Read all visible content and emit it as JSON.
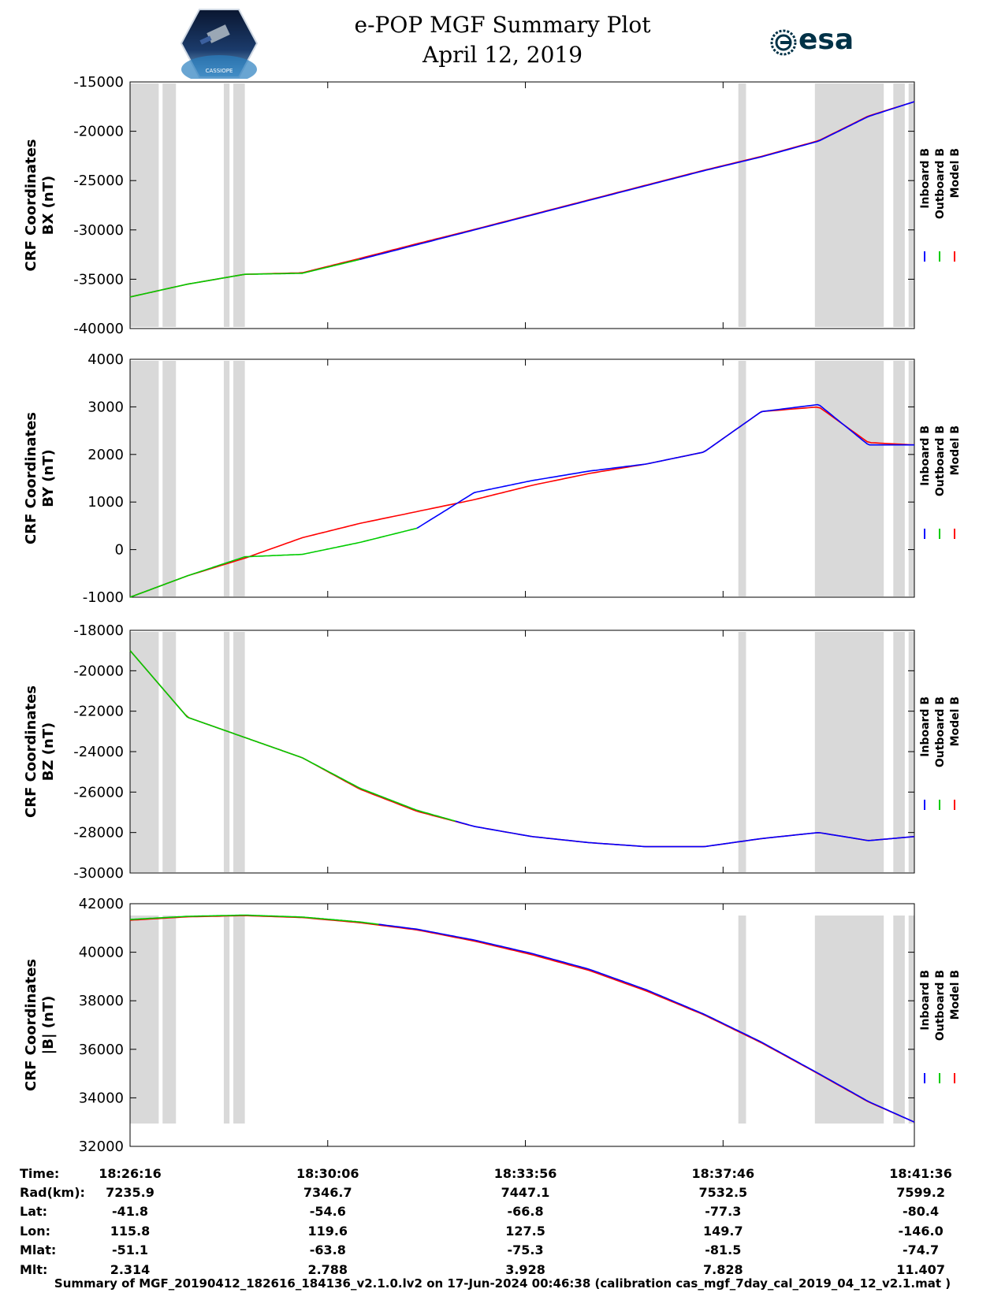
{
  "title_line1": "e-POP MGF Summary Plot",
  "title_line2": "April 12, 2019",
  "logo_left_text": "CASSIOPE",
  "logo_right_text": "esa",
  "legend": [
    {
      "label": "Inboard B",
      "color": "#0000ff"
    },
    {
      "label": "Outboard B",
      "color": "#00cc00"
    },
    {
      "label": "Model B",
      "color": "#ff0000"
    }
  ],
  "chart_data": [
    {
      "type": "line",
      "ylabel_line1": "CRF Coordinates",
      "ylabel_line2": "BX (nT)",
      "ylim": [
        -40000,
        -15000
      ],
      "yticks": [
        -15000,
        -20000,
        -25000,
        -30000,
        -35000,
        -40000
      ],
      "ytick_labels": [
        "-15000",
        "-20000",
        "-25000",
        "-30000",
        "-35000",
        "-40000"
      ],
      "x_minutes": [
        0,
        1.5,
        3,
        4.5,
        6,
        7.5,
        9,
        10.5,
        12,
        13.5,
        15,
        16.5,
        18,
        19.3,
        20.5
      ],
      "series": [
        {
          "name": "Outboard B",
          "segment": [
            0,
            6
          ],
          "values": [
            -36800,
            -35500,
            -34500,
            -34400,
            -33000,
            -31500,
            -30000,
            -28500,
            -27000,
            -25500,
            -24000,
            -22600,
            -21000,
            -18500,
            -17000
          ]
        },
        {
          "name": "Inboard B",
          "segment": [
            6,
            20.5
          ],
          "values": [
            -36800,
            -35500,
            -34500,
            -34400,
            -33000,
            -31500,
            -30000,
            -28500,
            -27000,
            -25500,
            -24000,
            -22600,
            -21000,
            -18500,
            -17000
          ]
        },
        {
          "name": "Model B",
          "segment": [
            0,
            20.5
          ],
          "values": [
            -36800,
            -35500,
            -34500,
            -34350,
            -32900,
            -31400,
            -29950,
            -28450,
            -26950,
            -25450,
            -23950,
            -22550,
            -20950,
            -18450,
            -17000
          ]
        }
      ]
    },
    {
      "type": "line",
      "ylabel_line1": "CRF Coordinates",
      "ylabel_line2": "BY (nT)",
      "ylim": [
        -1000,
        4000
      ],
      "yticks": [
        4000,
        3000,
        2000,
        1000,
        0,
        -1000
      ],
      "ytick_labels": [
        "4000",
        "3000",
        "2000",
        "1000",
        "0",
        "-1000"
      ],
      "x_minutes": [
        0,
        1.5,
        3,
        4.5,
        6,
        7.5,
        9,
        10.5,
        12,
        13.5,
        15,
        16.5,
        18,
        19.3,
        20.5
      ],
      "series": [
        {
          "name": "Outboard B",
          "segment": [
            0,
            7.5
          ],
          "values": [
            -1000,
            -550,
            -150,
            -100,
            150,
            450,
            1200,
            1450,
            1650,
            1800,
            2050,
            2900,
            3050,
            2200,
            2200
          ]
        },
        {
          "name": "Inboard B",
          "segment": [
            7.5,
            20.5
          ],
          "values": [
            -1000,
            -550,
            -150,
            -100,
            150,
            450,
            1200,
            1450,
            1650,
            1800,
            2050,
            2900,
            3050,
            2200,
            2200
          ]
        },
        {
          "name": "Model B",
          "segment": [
            0,
            20.5
          ],
          "values": [
            -1000,
            -550,
            -180,
            250,
            550,
            800,
            1050,
            1350,
            1600,
            1800,
            2050,
            2900,
            3000,
            2250,
            2200
          ]
        }
      ]
    },
    {
      "type": "line",
      "ylabel_line1": "CRF Coordinates",
      "ylabel_line2": "BZ (nT)",
      "ylim": [
        -30000,
        -18000
      ],
      "yticks": [
        -18000,
        -20000,
        -22000,
        -24000,
        -26000,
        -28000,
        -30000
      ],
      "ytick_labels": [
        "-18000",
        "-20000",
        "-22000",
        "-24000",
        "-26000",
        "-28000",
        "-30000"
      ],
      "x_minutes": [
        0,
        1.5,
        3,
        4.5,
        6,
        7.5,
        9,
        10.5,
        12,
        13.5,
        15,
        16.5,
        18,
        19.3,
        20.5
      ],
      "series": [
        {
          "name": "Outboard B",
          "segment": [
            0,
            8.5
          ],
          "values": [
            -19000,
            -22300,
            -23300,
            -24300,
            -25800,
            -26900,
            -27700,
            -28200,
            -28500,
            -28700,
            -28700,
            -28300,
            -28000,
            -28400,
            -28200
          ]
        },
        {
          "name": "Inboard B",
          "segment": [
            8.5,
            20.5
          ],
          "values": [
            -19000,
            -22300,
            -23300,
            -24300,
            -25800,
            -26900,
            -27700,
            -28200,
            -28500,
            -28700,
            -28700,
            -28300,
            -28000,
            -28400,
            -28200
          ]
        },
        {
          "name": "Model B",
          "segment": [
            0,
            20.5
          ],
          "values": [
            -19000,
            -22300,
            -23300,
            -24300,
            -25850,
            -26950,
            -27700,
            -28200,
            -28500,
            -28700,
            -28700,
            -28300,
            -28000,
            -28400,
            -28200
          ]
        }
      ]
    },
    {
      "type": "line",
      "ylabel_line1": "CRF Coordinates",
      "ylabel_line2": "|B| (nT)",
      "ylim": [
        32000,
        42000
      ],
      "yticks": [
        42000,
        40000,
        38000,
        36000,
        34000,
        32000
      ],
      "ytick_labels": [
        "42000",
        "40000",
        "38000",
        "36000",
        "34000",
        "32000"
      ],
      "x_minutes": [
        0,
        1.5,
        3,
        4.5,
        6,
        7.5,
        9,
        10.5,
        12,
        13.5,
        15,
        16.5,
        18,
        19.3,
        20.5
      ],
      "series": [
        {
          "name": "Outboard B",
          "segment": [
            0,
            6.5
          ],
          "values": [
            41350,
            41480,
            41530,
            41450,
            41250,
            40950,
            40500,
            39950,
            39300,
            38450,
            37450,
            36300,
            35000,
            33850,
            33000
          ]
        },
        {
          "name": "Inboard B",
          "segment": [
            6.5,
            20.5
          ],
          "values": [
            41350,
            41480,
            41530,
            41450,
            41250,
            40950,
            40500,
            39950,
            39300,
            38450,
            37450,
            36300,
            35000,
            33850,
            33000
          ]
        },
        {
          "name": "Model B",
          "segment": [
            0,
            20.5
          ],
          "values": [
            41320,
            41460,
            41510,
            41430,
            41220,
            40920,
            40460,
            39900,
            39250,
            38400,
            37420,
            36270,
            34980,
            33830,
            33000
          ]
        }
      ]
    }
  ],
  "shared_x": {
    "range_minutes": [
      0,
      20.5
    ],
    "tick_minutes": [
      0,
      5.1667,
      10.3333,
      15.5,
      20.6667
    ],
    "gaps_minutes": [
      [
        0,
        0.75
      ],
      [
        0.85,
        1.2
      ],
      [
        2.45,
        2.6
      ],
      [
        2.7,
        3.0
      ],
      [
        15.9,
        16.1
      ],
      [
        17.9,
        19.7
      ],
      [
        19.95,
        20.25
      ],
      [
        20.35,
        20.5
      ]
    ]
  },
  "table": {
    "row_labels": [
      "Time:",
      "Rad(km):",
      "Lat:",
      "Lon:",
      "Mlat:",
      "Mlt:"
    ],
    "columns": [
      [
        "18:26:16",
        "7235.9",
        "-41.8",
        "115.8",
        "-51.1",
        "2.314"
      ],
      [
        "18:30:06",
        "7346.7",
        "-54.6",
        "119.6",
        "-63.8",
        "2.788"
      ],
      [
        "18:33:56",
        "7447.1",
        "-66.8",
        "127.5",
        "-75.3",
        "3.928"
      ],
      [
        "18:37:46",
        "7532.5",
        "-77.3",
        "149.7",
        "-81.5",
        "7.828"
      ],
      [
        "18:41:36",
        "7599.2",
        "-80.4",
        "-146.0",
        "-74.7",
        "11.407"
      ]
    ]
  },
  "footer": "Summary of MGF_20190412_182616_184136_v2.1.0.lv2 on 17-Jun-2024 00:46:38 (calibration cas_mgf_7day_cal_2019_04_12_v2.1.mat )"
}
